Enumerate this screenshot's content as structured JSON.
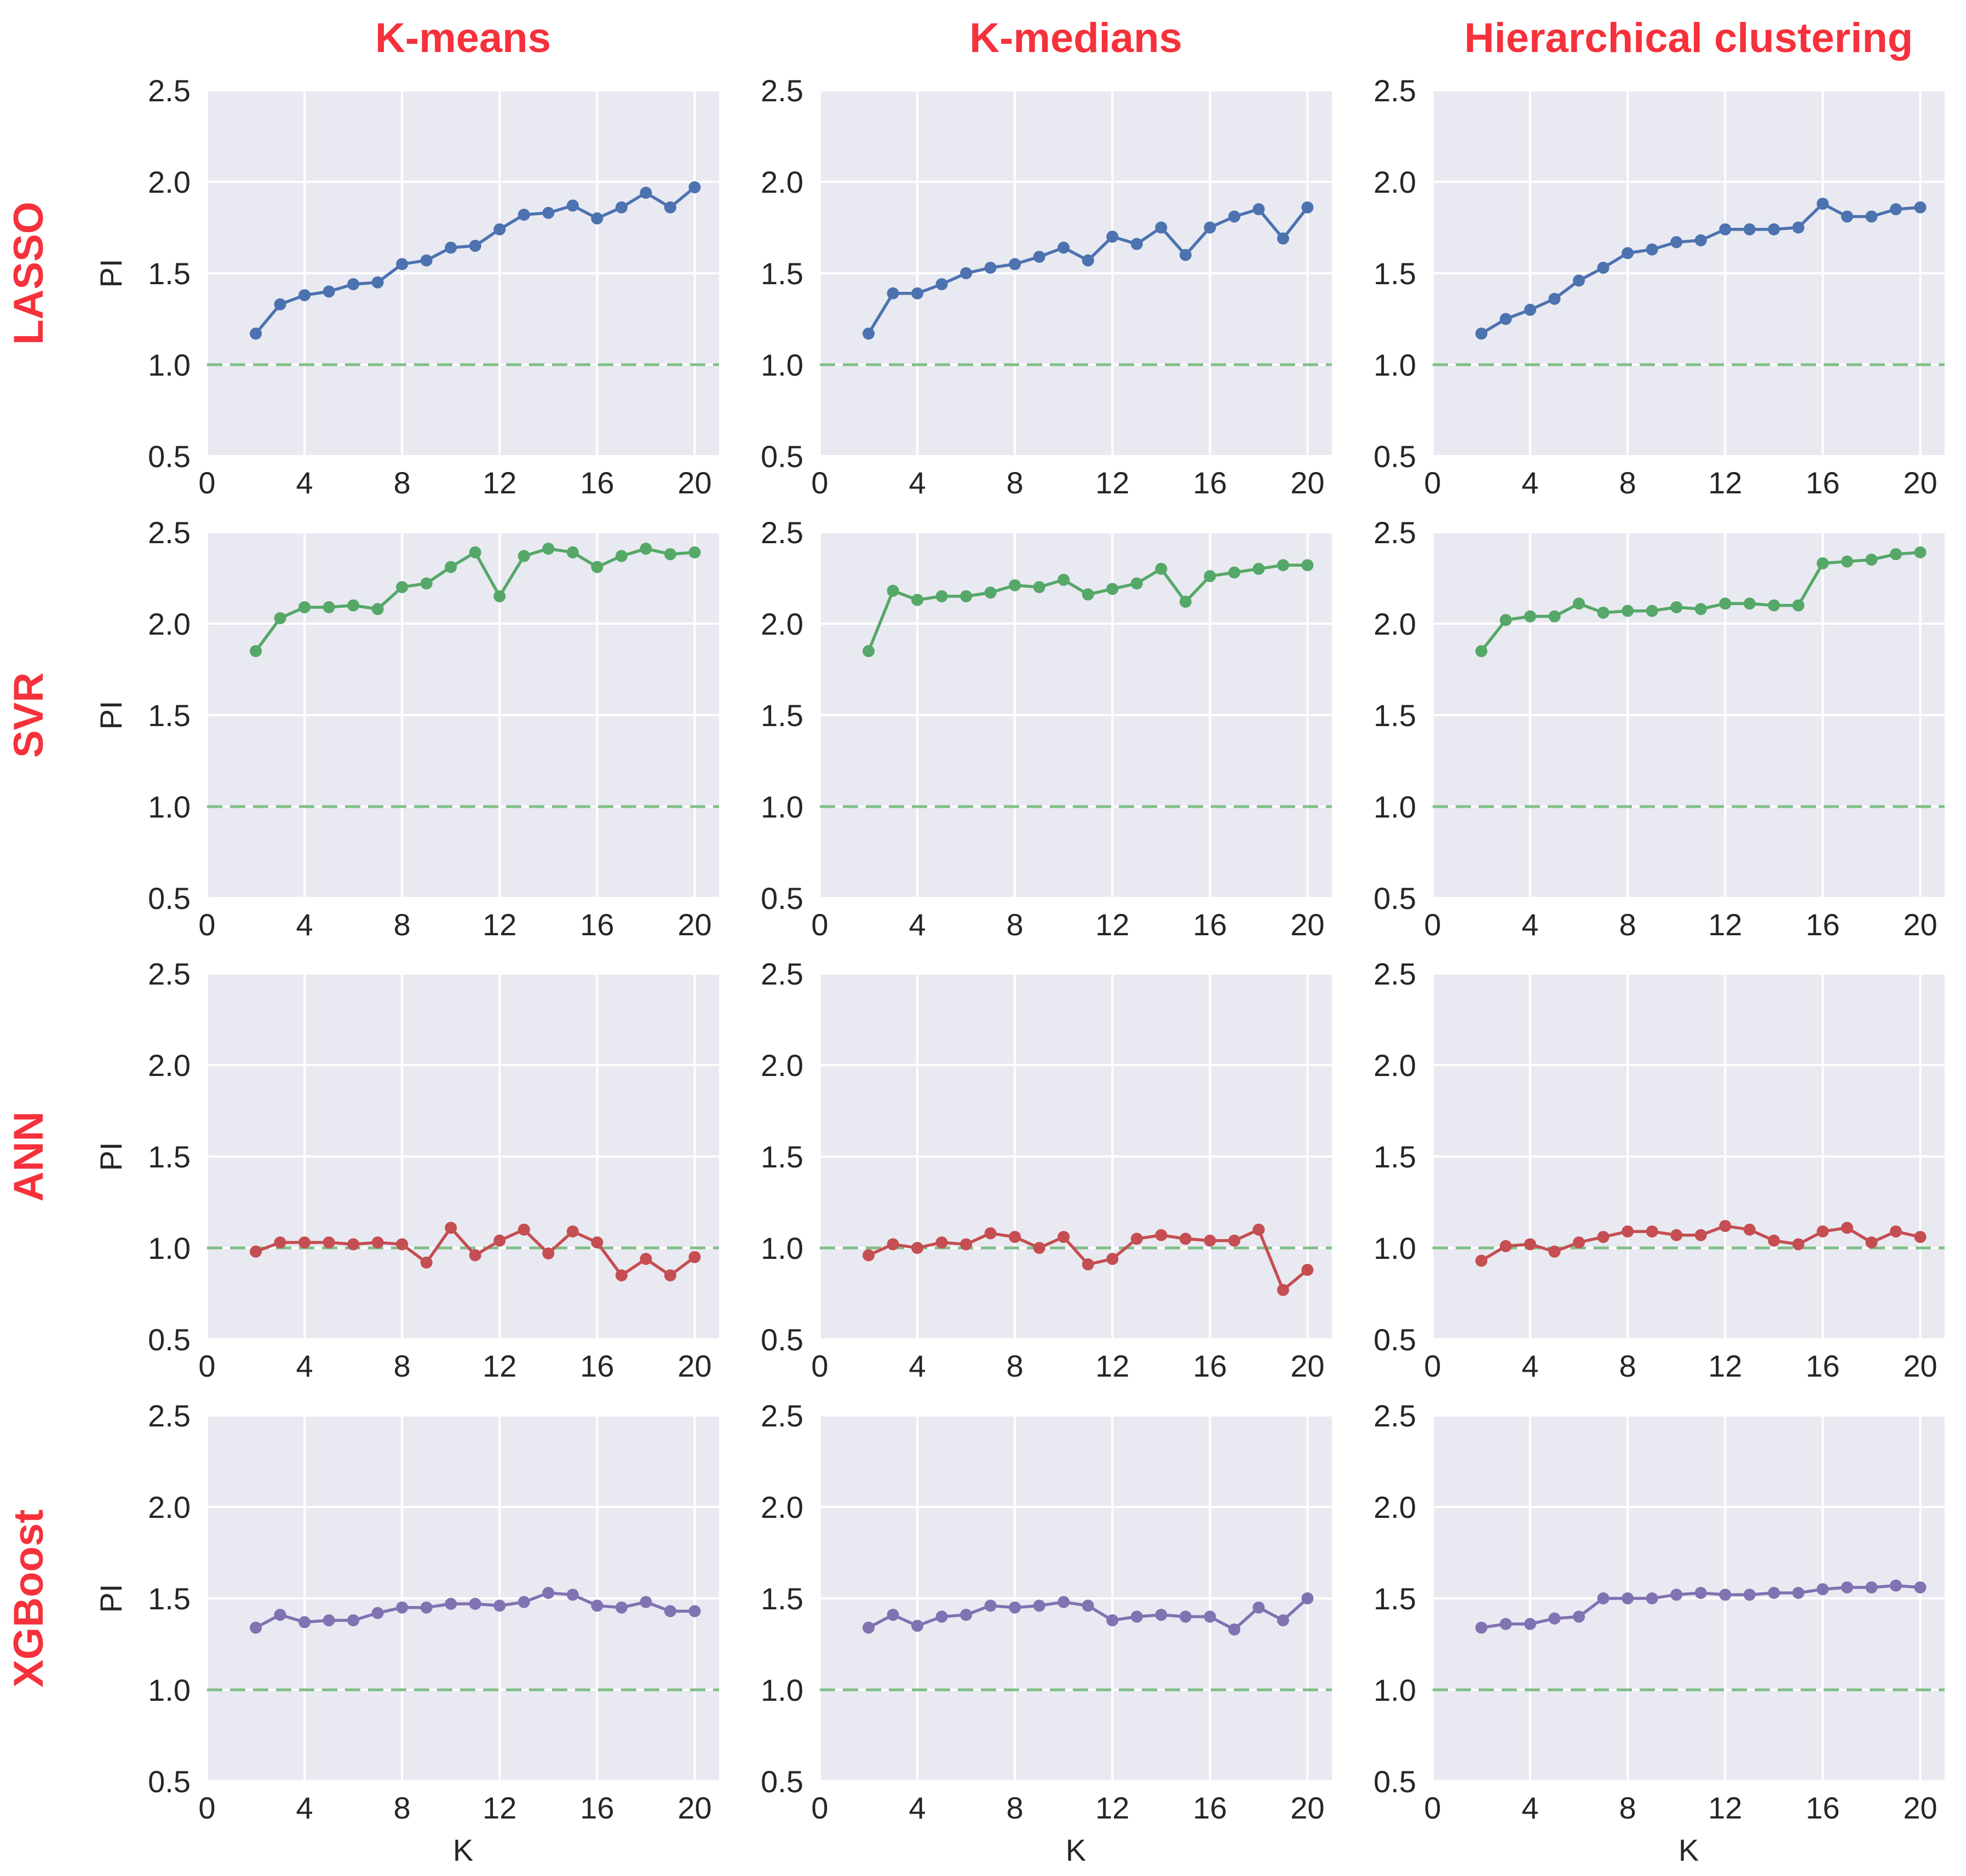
{
  "chart_data": {
    "type": "line",
    "layout": "4x3 grid of line plots",
    "column_titles": [
      "K-means",
      "K-medians",
      "Hierarchical clustering"
    ],
    "row_titles": [
      "LASSO",
      "SVR",
      "ANN",
      "XGBoost"
    ],
    "xlabel": "K",
    "ylabel": "PI",
    "xlim": [
      0,
      21
    ],
    "ylim": [
      0.5,
      2.5
    ],
    "xticks": [
      0,
      4,
      8,
      12,
      16,
      20
    ],
    "yticks": [
      "0.5",
      "1.0",
      "1.5",
      "2.0",
      "2.5"
    ],
    "reference_line": {
      "y": 1.0,
      "style": "dashed",
      "color": "#7fbf85"
    },
    "x": [
      2,
      3,
      4,
      5,
      6,
      7,
      8,
      9,
      10,
      11,
      12,
      13,
      14,
      15,
      16,
      17,
      18,
      19,
      20
    ],
    "series": [
      {
        "name": "LASSO",
        "color": "#4c72b0",
        "panels": [
          [
            1.17,
            1.33,
            1.38,
            1.4,
            1.44,
            1.45,
            1.55,
            1.57,
            1.64,
            1.65,
            1.74,
            1.82,
            1.83,
            1.87,
            1.8,
            1.86,
            1.94,
            1.86,
            1.97
          ],
          [
            1.17,
            1.39,
            1.39,
            1.44,
            1.5,
            1.53,
            1.55,
            1.59,
            1.64,
            1.57,
            1.7,
            1.66,
            1.75,
            1.6,
            1.75,
            1.81,
            1.85,
            1.69,
            1.86
          ],
          [
            1.17,
            1.25,
            1.3,
            1.36,
            1.46,
            1.53,
            1.61,
            1.63,
            1.67,
            1.68,
            1.74,
            1.74,
            1.74,
            1.75,
            1.88,
            1.81,
            1.81,
            1.85,
            1.86
          ]
        ]
      },
      {
        "name": "SVR",
        "color": "#55a868",
        "panels": [
          [
            1.85,
            2.03,
            2.09,
            2.09,
            2.1,
            2.08,
            2.2,
            2.22,
            2.31,
            2.39,
            2.15,
            2.37,
            2.41,
            2.39,
            2.31,
            2.37,
            2.41,
            2.38,
            2.39
          ],
          [
            1.85,
            2.18,
            2.13,
            2.15,
            2.15,
            2.17,
            2.21,
            2.2,
            2.24,
            2.16,
            2.19,
            2.22,
            2.3,
            2.12,
            2.26,
            2.28,
            2.3,
            2.32,
            2.32
          ],
          [
            1.85,
            2.02,
            2.04,
            2.04,
            2.11,
            2.06,
            2.07,
            2.07,
            2.09,
            2.08,
            2.11,
            2.11,
            2.1,
            2.1,
            2.33,
            2.34,
            2.35,
            2.38,
            2.39
          ]
        ]
      },
      {
        "name": "ANN",
        "color": "#c44e52",
        "panels": [
          [
            0.98,
            1.03,
            1.03,
            1.03,
            1.02,
            1.03,
            1.02,
            0.92,
            1.11,
            0.96,
            1.04,
            1.1,
            0.97,
            1.09,
            1.03,
            0.85,
            0.94,
            0.85,
            0.95
          ],
          [
            0.96,
            1.02,
            1.0,
            1.03,
            1.02,
            1.08,
            1.06,
            1.0,
            1.06,
            0.91,
            0.94,
            1.05,
            1.07,
            1.05,
            1.04,
            1.04,
            1.1,
            0.77,
            0.88
          ],
          [
            0.93,
            1.01,
            1.02,
            0.98,
            1.03,
            1.06,
            1.09,
            1.09,
            1.07,
            1.07,
            1.12,
            1.1,
            1.04,
            1.02,
            1.09,
            1.11,
            1.03,
            1.09,
            1.06
          ]
        ]
      },
      {
        "name": "XGBoost",
        "color": "#8172b2",
        "panels": [
          [
            1.34,
            1.41,
            1.37,
            1.38,
            1.38,
            1.42,
            1.45,
            1.45,
            1.47,
            1.47,
            1.46,
            1.48,
            1.53,
            1.52,
            1.46,
            1.45,
            1.48,
            1.43,
            1.43
          ],
          [
            1.34,
            1.41,
            1.35,
            1.4,
            1.41,
            1.46,
            1.45,
            1.46,
            1.48,
            1.46,
            1.38,
            1.4,
            1.41,
            1.4,
            1.4,
            1.33,
            1.45,
            1.38,
            1.5
          ],
          [
            1.34,
            1.36,
            1.36,
            1.39,
            1.4,
            1.5,
            1.5,
            1.5,
            1.52,
            1.53,
            1.52,
            1.52,
            1.53,
            1.53,
            1.55,
            1.56,
            1.56,
            1.57,
            1.56
          ]
        ]
      }
    ]
  }
}
